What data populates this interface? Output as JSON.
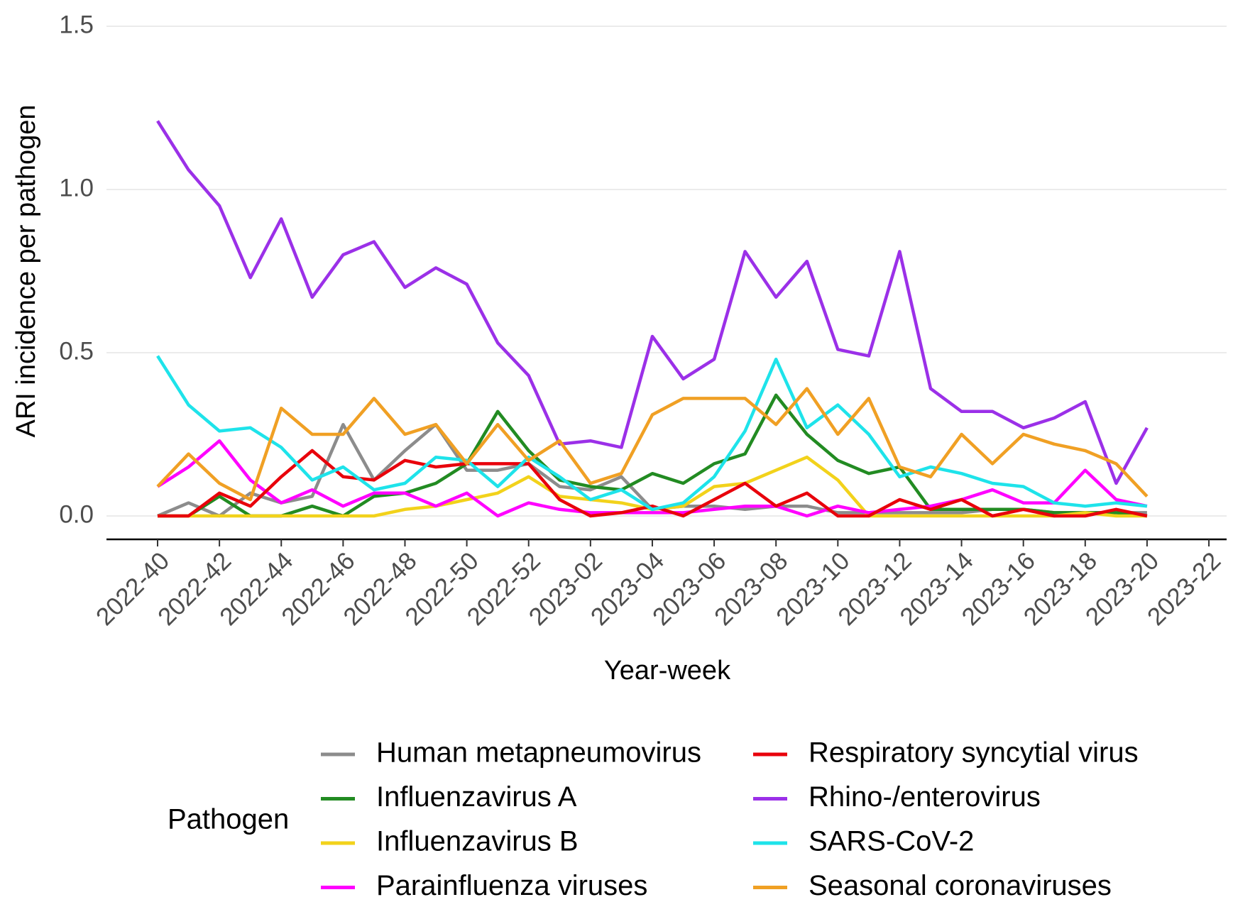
{
  "chart_data": {
    "type": "line",
    "x_label": "Year-week",
    "y_label": "ARI incidence per pathogen",
    "legend_title": "Pathogen",
    "legend": "bottom",
    "grid": true,
    "categories": [
      "2022-40",
      null,
      "2022-42",
      null,
      "2022-44",
      null,
      "2022-46",
      null,
      "2022-48",
      null,
      "2022-50",
      null,
      "2022-52",
      null,
      "2023-02",
      null,
      "2023-04",
      null,
      "2023-06",
      null,
      "2023-08",
      null,
      "2023-10",
      null,
      "2023-12",
      null,
      "2023-14",
      null,
      "2023-16",
      null,
      "2023-18",
      null,
      "2023-20",
      null,
      "2023-22"
    ],
    "ylim": [
      0,
      1.5
    ],
    "yticks": [
      {
        "value": 0,
        "label": "0.0"
      },
      0.5,
      {
        "value": 1,
        "label": "1.0"
      },
      1.5
    ],
    "series": [
      {
        "name": "Human metapneumovirus",
        "color": "#8c8c8c",
        "values": [
          0,
          0.04,
          0,
          0.07,
          0.04,
          0.06,
          0.28,
          0.11,
          0.2,
          0.28,
          0.14,
          0.14,
          0.16,
          0.09,
          0.08,
          0.12,
          0.02,
          0.03,
          0.03,
          0.02,
          0.03,
          0.03,
          0.01,
          0.01,
          0.01,
          0.01,
          0.01,
          0.02,
          0.02,
          0.01,
          0.01,
          0.01,
          0.01,
          null,
          null
        ]
      },
      {
        "name": "Influenzavirus A",
        "color": "#228b22",
        "values": [
          0,
          0,
          0.06,
          0,
          0,
          0.03,
          0,
          0.06,
          0.07,
          0.1,
          0.16,
          0.32,
          0.2,
          0.11,
          0.09,
          0.08,
          0.13,
          0.1,
          0.16,
          0.19,
          0.37,
          0.25,
          0.17,
          0.13,
          0.15,
          0.02,
          0.02,
          0.02,
          0.02,
          0.01,
          0.01,
          0.01,
          0,
          null,
          null
        ]
      },
      {
        "name": "Influenzavirus B",
        "color": "#f2d21b",
        "values": [
          0,
          0,
          0,
          0,
          0,
          0,
          0,
          0,
          0.02,
          0.03,
          0.05,
          0.07,
          0.12,
          0.06,
          0.05,
          0.04,
          0.02,
          0.03,
          0.09,
          0.1,
          0.14,
          0.18,
          0.11,
          0,
          0,
          0,
          0,
          0,
          0,
          0,
          0.01,
          0,
          0,
          null,
          null
        ]
      },
      {
        "name": "Parainfluenza viruses",
        "color": "#ff00ff",
        "values": [
          0.09,
          0.15,
          0.23,
          0.11,
          0.04,
          0.08,
          0.03,
          0.07,
          0.07,
          0.03,
          0.07,
          0,
          0.04,
          0.02,
          0.01,
          0.01,
          0.01,
          0.01,
          0.02,
          0.03,
          0.03,
          0,
          0.03,
          0.01,
          0.02,
          0.03,
          0.05,
          0.08,
          0.04,
          0.04,
          0.14,
          0.05,
          0.03,
          null,
          null
        ]
      },
      {
        "name": "Respiratory syncytial virus",
        "color": "#e8000b",
        "values": [
          0,
          0,
          0.07,
          0.03,
          0.12,
          0.2,
          0.12,
          0.11,
          0.17,
          0.15,
          0.16,
          0.16,
          0.16,
          0.05,
          0,
          0.01,
          0.03,
          0,
          0.05,
          0.1,
          0.03,
          0.07,
          0,
          0,
          0.05,
          0.02,
          0.05,
          0,
          0.02,
          0,
          0,
          0.02,
          0,
          null,
          null
        ]
      },
      {
        "name": "Rhino-/enterovirus",
        "color": "#9b30e8",
        "values": [
          1.21,
          1.06,
          0.95,
          0.73,
          0.91,
          0.67,
          0.8,
          0.84,
          0.7,
          0.76,
          0.71,
          0.53,
          0.43,
          0.22,
          0.23,
          0.21,
          0.55,
          0.42,
          0.48,
          0.81,
          0.67,
          0.78,
          0.51,
          0.49,
          0.81,
          0.39,
          0.32,
          0.32,
          0.27,
          0.3,
          0.35,
          0.1,
          0.27,
          null,
          null
        ]
      },
      {
        "name": "SARS-CoV-2",
        "color": "#1ee3ea",
        "values": [
          0.49,
          0.34,
          0.26,
          0.27,
          0.21,
          0.11,
          0.15,
          0.08,
          0.1,
          0.18,
          0.17,
          0.09,
          0.18,
          0.12,
          0.05,
          0.08,
          0.02,
          0.04,
          0.12,
          0.26,
          0.48,
          0.27,
          0.34,
          0.25,
          0.12,
          0.15,
          0.13,
          0.1,
          0.09,
          0.04,
          0.03,
          0.04,
          0.03,
          null,
          null
        ]
      },
      {
        "name": "Seasonal coronaviruses",
        "color": "#f0a024",
        "values": [
          0.09,
          0.19,
          0.1,
          0.05,
          0.33,
          0.25,
          0.25,
          0.36,
          0.25,
          0.28,
          0.16,
          0.28,
          0.17,
          0.23,
          0.1,
          0.13,
          0.31,
          0.36,
          0.36,
          0.36,
          0.28,
          0.39,
          0.25,
          0.36,
          0.15,
          0.12,
          0.25,
          0.16,
          0.25,
          0.22,
          0.2,
          0.16,
          0.06,
          null,
          null
        ]
      }
    ]
  }
}
